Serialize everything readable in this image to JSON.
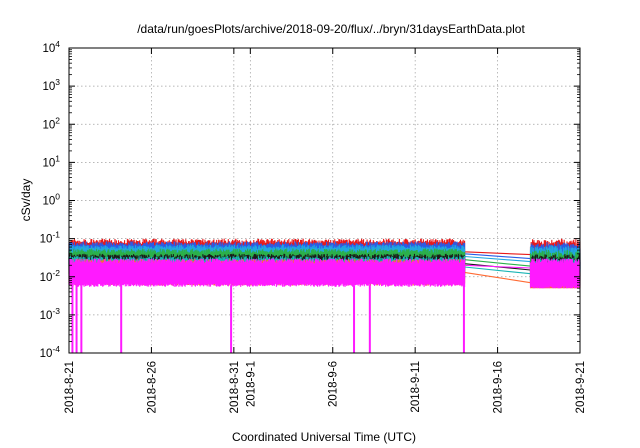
{
  "chart_data": {
    "type": "line",
    "title": "/data/run/goesPlots/archive/2018-09-20/flux/../bryn/31daysEarthData.plot",
    "xlabel": "Coordinated Universal Time (UTC)",
    "ylabel": "cSv/day",
    "y_scale": "log",
    "ylim": [
      0.0001,
      10000
    ],
    "xlim": [
      "2018-08-21",
      "2018-09-21"
    ],
    "grid": true,
    "x_ticks": [
      "2018-8-21",
      "2018-8-26",
      "2018-8-31",
      "2018-9-1",
      "2018-9-6",
      "2018-9-11",
      "2018-9-16",
      "2018-9-21"
    ],
    "y_ticks": [
      {
        "mantissa": "10",
        "exp": "-4",
        "value": 0.0001
      },
      {
        "mantissa": "10",
        "exp": "-3",
        "value": 0.001
      },
      {
        "mantissa": "10",
        "exp": "-2",
        "value": 0.01
      },
      {
        "mantissa": "10",
        "exp": "-1",
        "value": 0.1
      },
      {
        "mantissa": "10",
        "exp": "0",
        "value": 1
      },
      {
        "mantissa": "10",
        "exp": "1",
        "value": 10
      },
      {
        "mantissa": "10",
        "exp": "2",
        "value": 100
      },
      {
        "mantissa": "10",
        "exp": "3",
        "value": 1000
      },
      {
        "mantissa": "10",
        "exp": "4",
        "value": 10000
      }
    ],
    "data_gap": {
      "start": "2018-09-14",
      "end": "2018-09-18"
    },
    "series": [
      {
        "color": "#e8191a",
        "level_before_gap": 0.045,
        "level_after_gap": 0.038,
        "noise_peak": 0.1
      },
      {
        "color": "#2a5ce6",
        "level_before_gap": 0.04,
        "level_after_gap": 0.03,
        "noise_peak": 0.085
      },
      {
        "color": "#22a7e0",
        "level_before_gap": 0.034,
        "level_after_gap": 0.025,
        "noise_peak": 0.07
      },
      {
        "color": "#2bb04a",
        "level_before_gap": 0.028,
        "level_after_gap": 0.019,
        "noise_peak": 0.055
      },
      {
        "color": "#1a1a1a",
        "level_before_gap": 0.022,
        "level_after_gap": 0.015,
        "noise_peak": 0.04
      },
      {
        "color": "#19b5b5",
        "level_before_gap": 0.018,
        "level_after_gap": 0.012,
        "noise_peak": 0.035
      },
      {
        "color": "#ff6a33",
        "level_before_gap": 0.013,
        "level_after_gap": 0.007,
        "noise_peak": 0.03
      },
      {
        "color": "#ff1aff",
        "level_before_gap": 0.02,
        "level_after_gap": 0.017,
        "noise_peak": 0.03,
        "noise_floor": 0.006
      }
    ],
    "dropouts": [
      {
        "date": "2018-08-21T05:00",
        "value": 0.0001
      },
      {
        "date": "2018-08-21T11:00",
        "value": 0.0001
      },
      {
        "date": "2018-08-21T18:00",
        "value": 0.0001
      },
      {
        "date": "2018-08-24T04:00",
        "value": 0.0001
      },
      {
        "date": "2018-08-30T20:00",
        "value": 0.0001
      },
      {
        "date": "2018-09-07T07:00",
        "value": 0.0001
      },
      {
        "date": "2018-09-08T06:00",
        "value": 0.0001
      },
      {
        "date": "2018-09-13T23:00",
        "value": 0.0001
      }
    ]
  }
}
